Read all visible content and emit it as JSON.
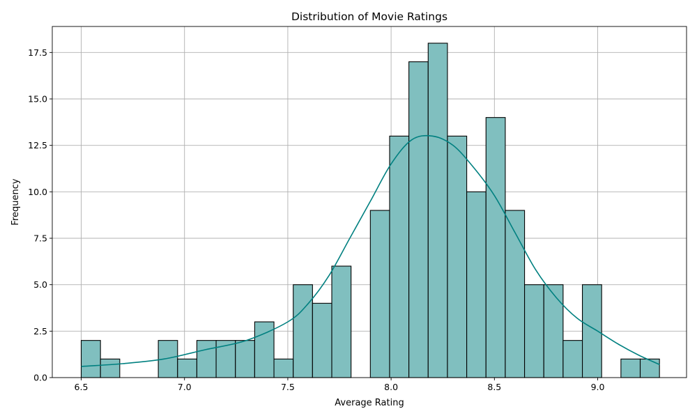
{
  "chart_data": {
    "type": "bar",
    "title": "Distribution of Movie Ratings",
    "xlabel": "Average Rating",
    "ylabel": "Frequency",
    "xlim": [
      6.36,
      9.43
    ],
    "ylim": [
      0,
      18.9
    ],
    "grid": true,
    "x_ticks": [
      "6.5",
      "7.0",
      "7.5",
      "8.0",
      "8.5",
      "9.0"
    ],
    "y_ticks": [
      "0.0",
      "2.5",
      "5.0",
      "7.5",
      "10.0",
      "12.5",
      "15.0",
      "17.5"
    ],
    "bin_start": 6.5,
    "bin_width": 0.0933,
    "counts": [
      2,
      1,
      0,
      0,
      2,
      1,
      2,
      2,
      2,
      3,
      1,
      5,
      4,
      6,
      0,
      9,
      13,
      17,
      18,
      13,
      10,
      14,
      9,
      5,
      5,
      2,
      5,
      0,
      1,
      1
    ],
    "kde": {
      "x": [
        6.5,
        6.7,
        6.9,
        7.1,
        7.3,
        7.5,
        7.6,
        7.7,
        7.8,
        7.9,
        8.0,
        8.1,
        8.2,
        8.3,
        8.4,
        8.5,
        8.6,
        8.7,
        8.8,
        8.9,
        9.0,
        9.1,
        9.2,
        9.3
      ],
      "y": [
        0.6,
        0.75,
        1.0,
        1.5,
        2.0,
        3.0,
        4.0,
        5.5,
        7.5,
        9.5,
        11.5,
        12.8,
        13.0,
        12.5,
        11.3,
        9.8,
        7.8,
        5.8,
        4.3,
        3.2,
        2.5,
        1.8,
        1.2,
        0.7
      ],
      "color": "#008080"
    },
    "colors": {
      "bar_fill": "#80bfbf",
      "bar_edge": "#000000",
      "grid": "#b0b0b0"
    }
  }
}
